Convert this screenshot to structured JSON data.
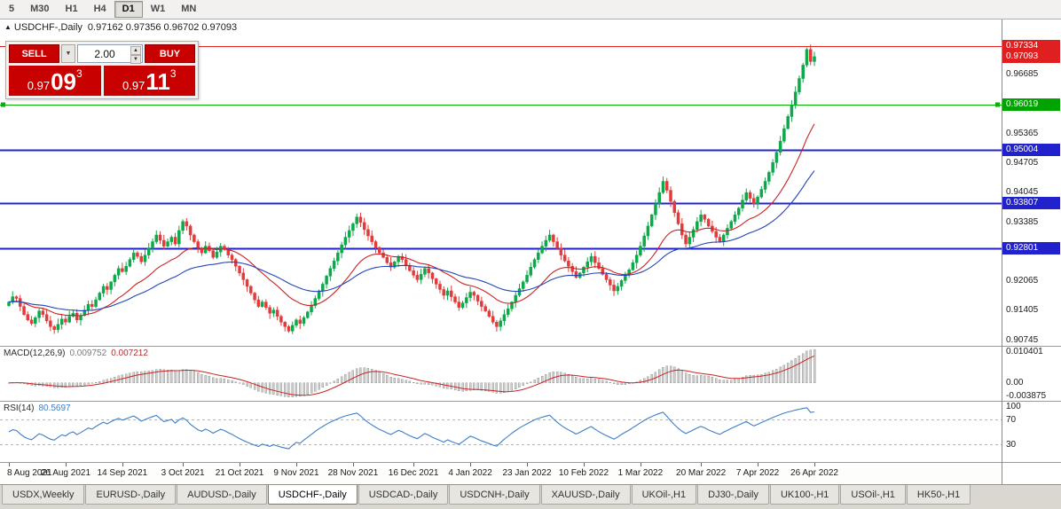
{
  "icons": {
    "dropdown": "▼",
    "spin_up": "▲",
    "spin_down": "▼",
    "chart_caret": "▲"
  },
  "colors": {
    "up": "#0ca94a",
    "down": "#e23b3b",
    "ma_fast": "#cc2222",
    "ma_slow": "#2244bb",
    "macd_bar_fill": "#cfcfcf",
    "macd_bar_stroke": "#9b9b9b",
    "macd_signal": "#cc2222",
    "rsi_line": "#3c7ec8",
    "rsi_level": "#9fb8d8",
    "line_red": "#e02020",
    "line_green": "#00b400",
    "line_blue": "#2222cc",
    "badge_red": "#e02020",
    "badge_green": "#00a300",
    "badge_blue": "#2222cc",
    "button_red": "#c90000"
  },
  "toolbar": {
    "timeframes": [
      "5",
      "M30",
      "H1",
      "H4",
      "D1",
      "W1",
      "MN"
    ],
    "active_index": 4
  },
  "chart": {
    "title": "USDCHF-,Daily",
    "ohlc": "0.97162 0.97356 0.96702 0.97093"
  },
  "trade_panel": {
    "sell_label": "SELL",
    "buy_label": "BUY",
    "volume": "2.00",
    "sell_price": {
      "prefix": "0.97",
      "big": "09",
      "sup": "3"
    },
    "buy_price": {
      "prefix": "0.97",
      "big": "11",
      "sup": "3"
    }
  },
  "price_axis": {
    "ticks": [
      "0.96685",
      "0.95365",
      "0.94705",
      "0.94045",
      "0.93385",
      "0.92065",
      "0.91405",
      "0.90745"
    ],
    "badges": [
      {
        "label": "0.97334",
        "price": 0.97334,
        "color": "#e02020"
      },
      {
        "label": "0.97093",
        "price": 0.97093,
        "color": "#e02020"
      },
      {
        "label": "0.96019",
        "price": 0.96019,
        "color": "#00a300"
      },
      {
        "label": "0.95004",
        "price": 0.95004,
        "color": "#2222cc"
      },
      {
        "label": "0.93807",
        "price": 0.93807,
        "color": "#2222cc"
      },
      {
        "label": "0.92801",
        "price": 0.92801,
        "color": "#2222cc"
      }
    ]
  },
  "hlines": [
    {
      "price": 0.97334,
      "color": "#e02020",
      "width": 1,
      "handles": false
    },
    {
      "price": 0.96019,
      "color": "#00b400",
      "width": 1,
      "handles": true
    },
    {
      "price": 0.95004,
      "color": "#2222cc",
      "width": 2,
      "handles": false
    },
    {
      "price": 0.93807,
      "color": "#2222cc",
      "width": 2,
      "handles": false
    },
    {
      "price": 0.92801,
      "color": "#2222cc",
      "width": 2,
      "handles": false
    }
  ],
  "chart_data": {
    "type": "candlestick",
    "symbol": "USDCHF-",
    "timeframe": "Daily",
    "ylim": [
      0.9062,
      0.9792
    ],
    "current_bar": {
      "open": 0.97162,
      "high": 0.97356,
      "low": 0.96702,
      "close": 0.97093
    },
    "x_labels": [
      "8 Aug 2021",
      "26 Aug 2021",
      "14 Sep 2021",
      "3 Oct 2021",
      "21 Oct 2021",
      "9 Nov 2021",
      "28 Nov 2021",
      "16 Dec 2021",
      "4 Jan 2022",
      "23 Jan 2022",
      "10 Feb 2022",
      "1 Mar 2022",
      "20 Mar 2022",
      "7 Apr 2022",
      "26 Apr 2022"
    ],
    "closes": [
      0.916,
      0.9172,
      0.9168,
      0.915,
      0.9132,
      0.912,
      0.9112,
      0.9125,
      0.914,
      0.9132,
      0.9118,
      0.9105,
      0.9098,
      0.911,
      0.9122,
      0.9115,
      0.9128,
      0.9135,
      0.912,
      0.913,
      0.9142,
      0.9155,
      0.915,
      0.9165,
      0.918,
      0.9195,
      0.9188,
      0.9205,
      0.922,
      0.9235,
      0.9228,
      0.924,
      0.9255,
      0.927,
      0.9262,
      0.925,
      0.9265,
      0.928,
      0.9295,
      0.931,
      0.9298,
      0.9285,
      0.9295,
      0.9305,
      0.929,
      0.932,
      0.934,
      0.933,
      0.931,
      0.9295,
      0.928,
      0.927,
      0.9285,
      0.9275,
      0.926,
      0.9272,
      0.9285,
      0.9278,
      0.9265,
      0.9255,
      0.924,
      0.9225,
      0.921,
      0.9195,
      0.918,
      0.9165,
      0.915,
      0.916,
      0.9148,
      0.9135,
      0.9142,
      0.9128,
      0.9115,
      0.9105,
      0.9095,
      0.9108,
      0.912,
      0.9112,
      0.9125,
      0.9138,
      0.9152,
      0.9168,
      0.9185,
      0.92,
      0.9218,
      0.9235,
      0.9252,
      0.927,
      0.9288,
      0.9305,
      0.932,
      0.9335,
      0.935,
      0.9338,
      0.9322,
      0.9308,
      0.9295,
      0.9282,
      0.927,
      0.926,
      0.9248,
      0.9238,
      0.925,
      0.9262,
      0.9255,
      0.9242,
      0.923,
      0.922,
      0.921,
      0.9222,
      0.9235,
      0.9225,
      0.9212,
      0.92,
      0.9188,
      0.9175,
      0.9185,
      0.9172,
      0.916,
      0.9148,
      0.9158,
      0.917,
      0.9182,
      0.9175,
      0.9162,
      0.915,
      0.914,
      0.9128,
      0.9115,
      0.9105,
      0.9118,
      0.9132,
      0.9145,
      0.916,
      0.9175,
      0.919,
      0.9205,
      0.922,
      0.9238,
      0.9255,
      0.927,
      0.9285,
      0.9298,
      0.931,
      0.9295,
      0.928,
      0.9265,
      0.9252,
      0.924,
      0.9228,
      0.9215,
      0.9225,
      0.9238,
      0.925,
      0.9262,
      0.9248,
      0.9235,
      0.9222,
      0.921,
      0.9198,
      0.9185,
      0.9195,
      0.9208,
      0.922,
      0.9232,
      0.9248,
      0.9265,
      0.9285,
      0.9308,
      0.933,
      0.9355,
      0.938,
      0.9405,
      0.943,
      0.941,
      0.9385,
      0.936,
      0.9335,
      0.931,
      0.929,
      0.9305,
      0.9322,
      0.934,
      0.9355,
      0.9345,
      0.933,
      0.9318,
      0.9305,
      0.9295,
      0.931,
      0.9325,
      0.934,
      0.9355,
      0.937,
      0.9388,
      0.9405,
      0.9392,
      0.938,
      0.9395,
      0.9412,
      0.943,
      0.945,
      0.9472,
      0.9495,
      0.952,
      0.9548,
      0.9575,
      0.96,
      0.963,
      0.966,
      0.969,
      0.9725,
      0.9698,
      0.9709
    ],
    "indicators": {
      "macd": {
        "label": "MACD(12,26,9)",
        "value_main": "0.009752",
        "value_signal": "0.007212",
        "params": [
          12,
          26,
          9
        ],
        "axis_labels": [
          "0.010401",
          "0.00",
          "-0.003875"
        ]
      },
      "rsi": {
        "label": "RSI(14)",
        "value": "80.5697",
        "period": 14,
        "levels": [
          70,
          30
        ],
        "axis_labels": [
          "100",
          "70",
          "30"
        ]
      },
      "moving_averages": [
        {
          "period": 20,
          "color": "#cc2222"
        },
        {
          "period": 45,
          "color": "#2244bb"
        }
      ]
    }
  },
  "tabs": {
    "items": [
      "USDX,Weekly",
      "EURUSD-,Daily",
      "AUDUSD-,Daily",
      "USDCHF-,Daily",
      "USDCAD-,Daily",
      "USDCNH-,Daily",
      "XAUUSD-,Daily",
      "UKOil-,H1",
      "DJ30-,Daily",
      "UK100-,H1",
      "USOil-,H1",
      "HK50-,H1"
    ],
    "active_index": 3
  }
}
